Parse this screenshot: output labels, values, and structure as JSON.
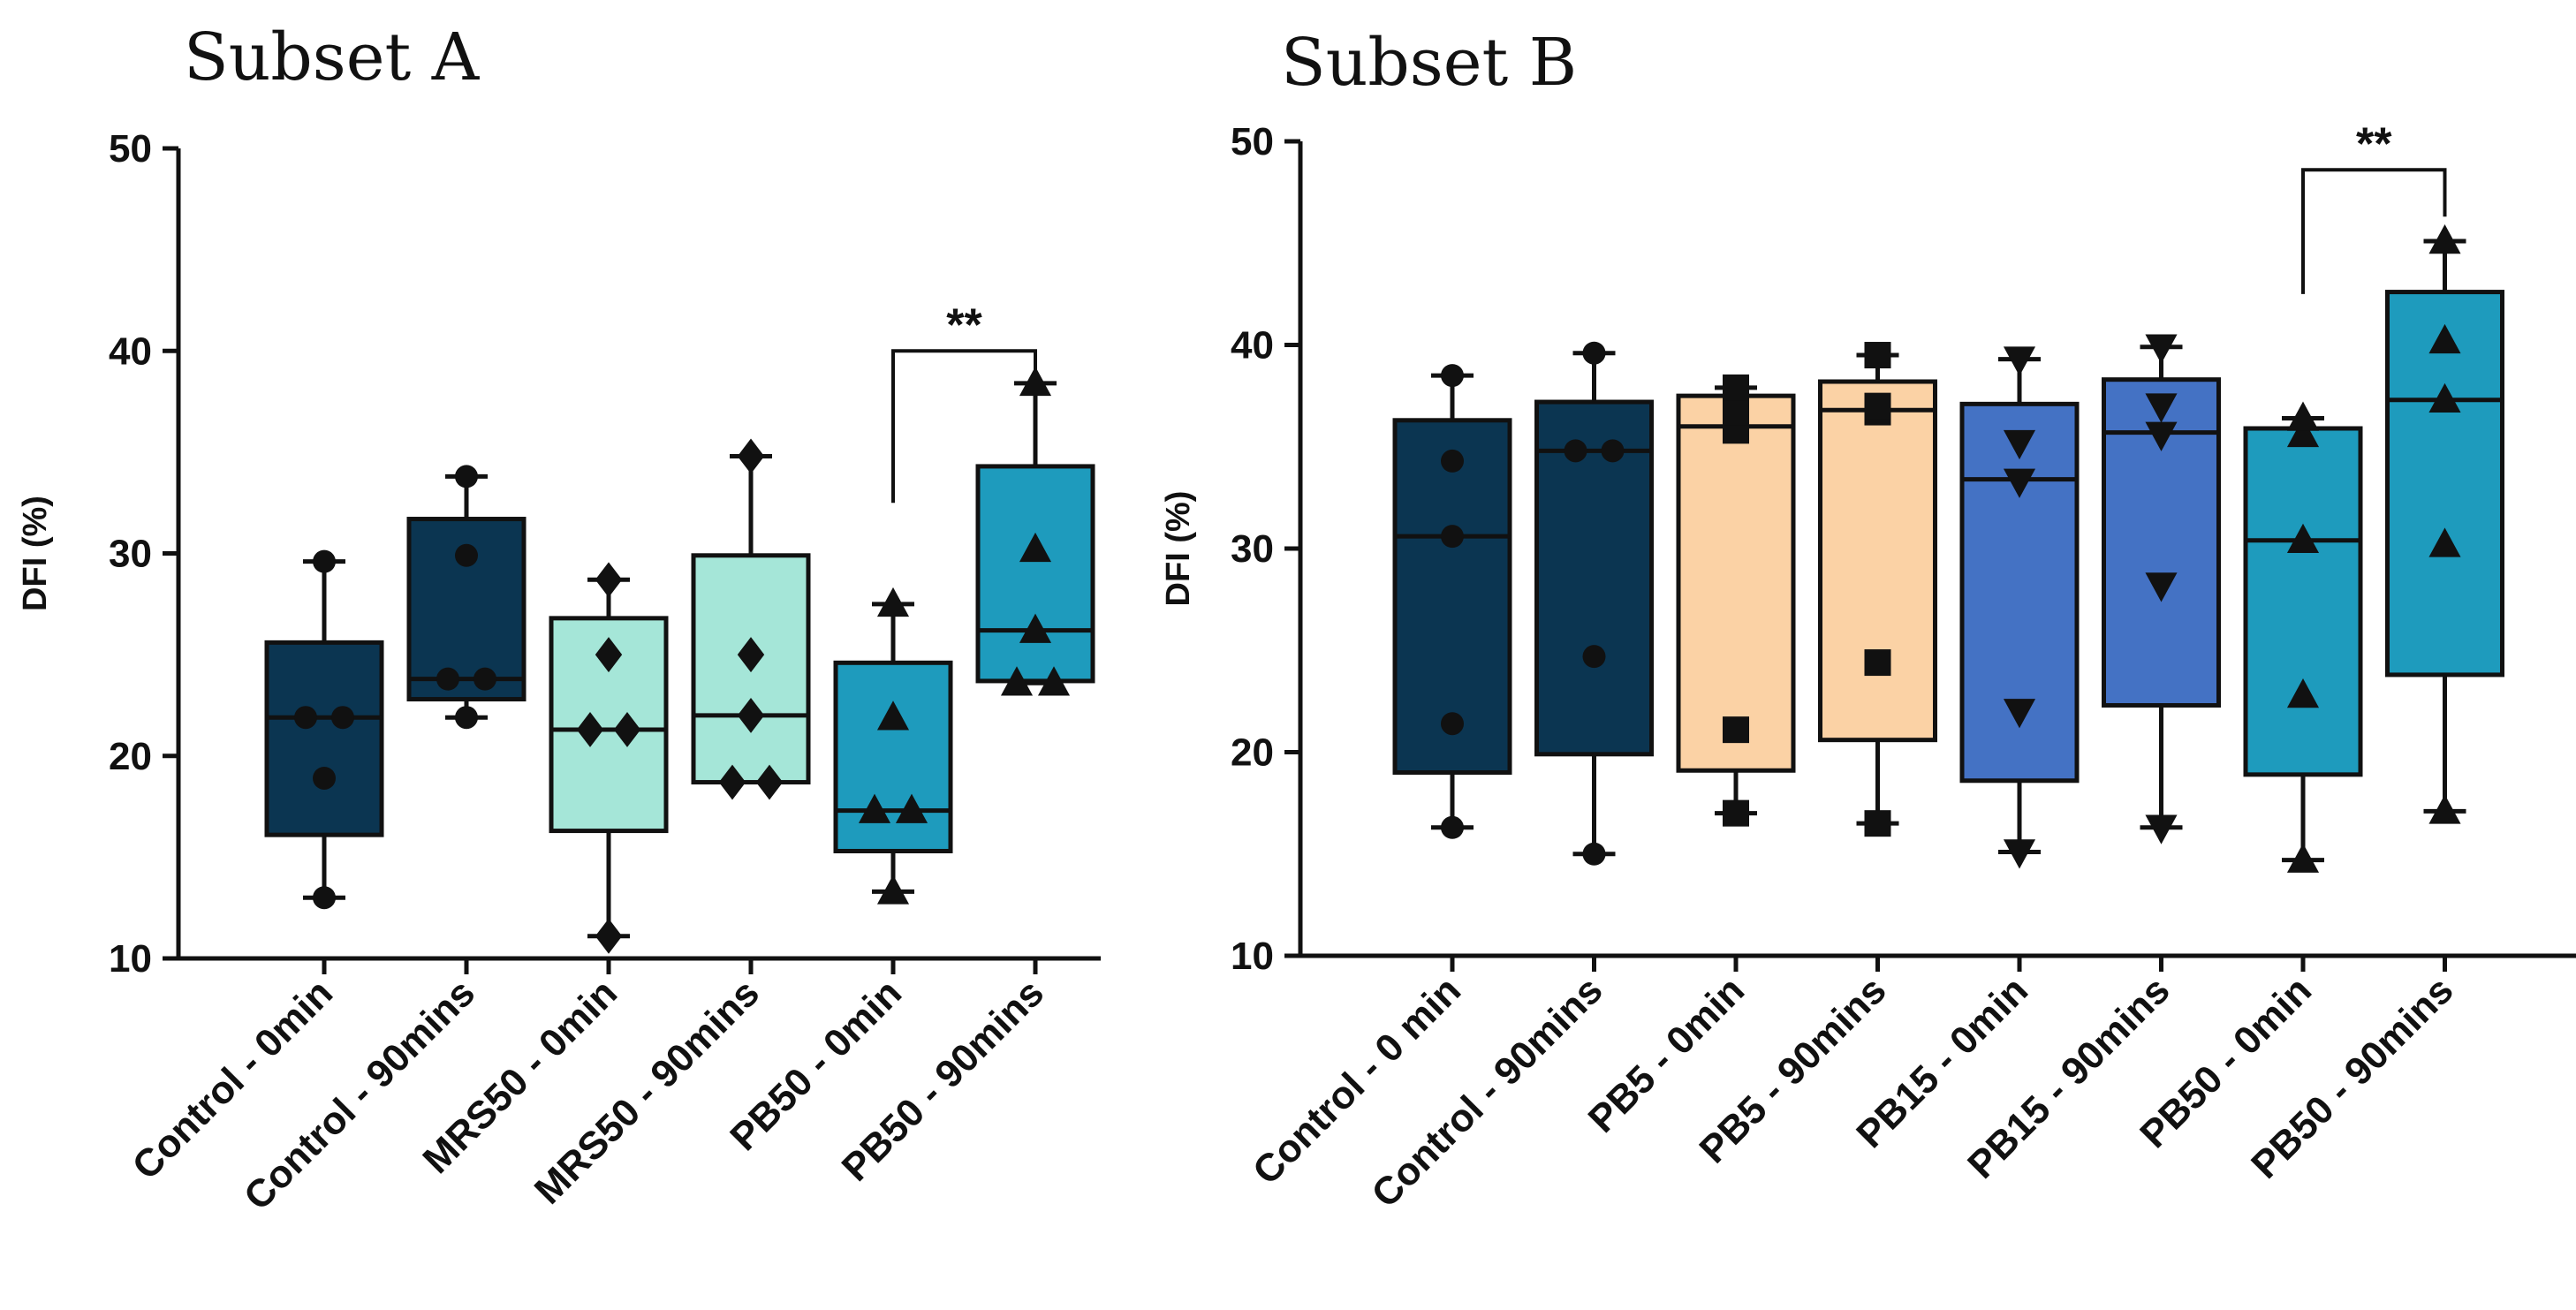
{
  "chart_data": [
    {
      "type": "box",
      "title": "Subset A",
      "ylabel": "DFI (%)",
      "ylim": [
        10,
        50
      ],
      "yticks": [
        "10",
        "20",
        "30",
        "40",
        "50"
      ],
      "categories": [
        "Control - 0min",
        "Control - 90mins",
        "MRS50 - 0min",
        "MRS50 - 90mins",
        "PB50 - 0min",
        "PB50 - 90mins"
      ],
      "groups": [
        {
          "label": "Control - 0min",
          "color": "#0b3551",
          "marker": "circle",
          "min": 13.0,
          "q1": 16.1,
          "median": 21.9,
          "q3": 25.6,
          "max": 29.6,
          "points": [
            13.0,
            18.9,
            21.9,
            21.9,
            29.6
          ]
        },
        {
          "label": "Control - 90mins",
          "color": "#0b3551",
          "marker": "circle",
          "min": 21.9,
          "q1": 22.8,
          "median": 23.8,
          "q3": 31.7,
          "max": 33.8,
          "points": [
            21.9,
            23.8,
            23.8,
            29.9,
            33.8
          ]
        },
        {
          "label": "MRS50 - 0min",
          "color": "#a5e6d8",
          "marker": "diamond",
          "min": 11.1,
          "q1": 16.3,
          "median": 21.3,
          "q3": 26.8,
          "max": 28.7,
          "points": [
            11.1,
            21.3,
            21.3,
            25.0,
            28.7
          ]
        },
        {
          "label": "MRS50 - 90mins",
          "color": "#a5e6d8",
          "marker": "diamond",
          "min": 18.7,
          "q1": 18.7,
          "median": 22.0,
          "q3": 29.9,
          "max": 34.8,
          "points": [
            18.7,
            18.7,
            22.0,
            25.0,
            34.8
          ]
        },
        {
          "label": "PB50 - 0min",
          "color": "#1e9bbd",
          "marker": "triangle",
          "min": 13.3,
          "q1": 15.3,
          "median": 17.3,
          "q3": 24.6,
          "max": 27.5,
          "points": [
            13.3,
            17.3,
            17.3,
            21.9,
            27.5
          ]
        },
        {
          "label": "PB50 - 90mins",
          "color": "#1e9bbd",
          "marker": "triangle",
          "min": 23.6,
          "q1": 23.7,
          "median": 26.2,
          "q3": 34.3,
          "max": 38.4,
          "points": [
            23.6,
            23.6,
            26.2,
            30.2,
            38.4
          ]
        }
      ],
      "significance": {
        "from": 4,
        "to": 5,
        "y_level": 40,
        "from_y": 32.5,
        "to_y": 38.6,
        "label": "**"
      }
    },
    {
      "type": "box",
      "title": "Subset B",
      "ylabel": "DFI (%)",
      "ylim": [
        10,
        50
      ],
      "yticks": [
        "10",
        "20",
        "30",
        "40",
        "50"
      ],
      "categories": [
        "Control - 0 min",
        "Control - 90mins",
        "PB5 - 0min",
        "PB5 - 90mins",
        "PB15 - 0min",
        "PB15 - 90mins",
        "PB50 - 0min",
        "PB50 - 90mins"
      ],
      "groups": [
        {
          "label": "Control - 0 min",
          "color": "#0b3551",
          "marker": "circle",
          "min": 16.3,
          "q1": 19.0,
          "median": 30.6,
          "q3": 36.3,
          "max": 38.5,
          "points": [
            16.3,
            21.4,
            30.6,
            34.3,
            38.5
          ]
        },
        {
          "label": "Control - 90mins",
          "color": "#0b3551",
          "marker": "circle",
          "min": 15.0,
          "q1": 19.9,
          "median": 34.8,
          "q3": 37.2,
          "max": 39.6,
          "points": [
            15.0,
            24.7,
            34.8,
            34.8,
            39.6
          ]
        },
        {
          "label": "PB5 - 0min",
          "color": "#fbd2a5",
          "marker": "square",
          "min": 17.0,
          "q1": 19.1,
          "median": 36.0,
          "q3": 37.5,
          "max": 37.9,
          "points": [
            17.0,
            21.1,
            35.8,
            36.7,
            37.9
          ]
        },
        {
          "label": "PB5 - 90mins",
          "color": "#fbd2a5",
          "marker": "square",
          "min": 16.5,
          "q1": 20.6,
          "median": 36.8,
          "q3": 38.2,
          "max": 39.5,
          "points": [
            16.5,
            24.4,
            36.7,
            37.0,
            39.5
          ]
        },
        {
          "label": "PB15 - 0min",
          "color": "#4472c4",
          "marker": "triangle-down",
          "min": 15.1,
          "q1": 18.6,
          "median": 33.4,
          "q3": 37.1,
          "max": 39.3,
          "points": [
            15.1,
            22.0,
            33.3,
            35.2,
            39.3
          ]
        },
        {
          "label": "PB15 - 90mins",
          "color": "#4472c4",
          "marker": "triangle-down",
          "min": 16.3,
          "q1": 22.3,
          "median": 35.7,
          "q3": 38.3,
          "max": 39.9,
          "points": [
            16.3,
            28.2,
            35.6,
            37.0,
            39.9
          ]
        },
        {
          "label": "PB50 - 0min",
          "color": "#1e9bbd",
          "marker": "triangle",
          "min": 14.7,
          "q1": 18.9,
          "median": 30.4,
          "q3": 35.9,
          "max": 36.4,
          "points": [
            14.7,
            22.8,
            30.4,
            35.6,
            36.4
          ]
        },
        {
          "label": "PB50 - 90mins",
          "color": "#1e9bbd",
          "marker": "triangle",
          "min": 17.1,
          "q1": 23.8,
          "median": 37.3,
          "q3": 42.6,
          "max": 45.1,
          "points": [
            17.1,
            30.2,
            37.3,
            40.2,
            45.1
          ]
        }
      ],
      "significance": {
        "from": 6,
        "to": 7,
        "y_level": 48.6,
        "from_y": 42.5,
        "to_y": 46.3,
        "label": "**"
      }
    }
  ]
}
